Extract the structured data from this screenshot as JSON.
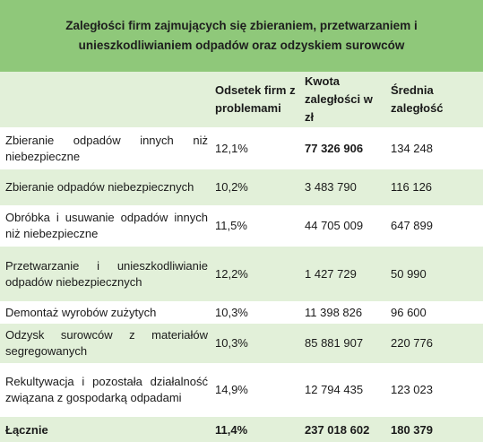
{
  "title": "Zaległości firm zajmujących się zbieraniem, przetwarzaniem i unieszkodliwianiem odpadów oraz odzyskiem surowców",
  "headers": {
    "category": "",
    "share": "Odsetek firm z problemami",
    "amount": "Kwota zaległości w zł",
    "average": "Średnia zaległość"
  },
  "rows": [
    {
      "label": "Zbieranie odpadów innych niż niebezpieczne",
      "share": "12,1%",
      "amount": "77 326 906",
      "average": "134 248"
    },
    {
      "label": "Zbieranie odpadów niebezpiecznych",
      "share": "10,2%",
      "amount": "3 483 790",
      "average": "116 126"
    },
    {
      "label": "Obróbka i usuwanie odpadów innych niż niebezpieczne",
      "share": "11,5%",
      "amount": "44 705 009",
      "average": "647 899"
    },
    {
      "label": "Przetwarzanie i unieszkodliwianie odpadów niebezpiecznych",
      "share": "12,2%",
      "amount": "1 427 729",
      "average": "50 990"
    },
    {
      "label": "Demontaż wyrobów zużytych",
      "share": "10,3%",
      "amount": "11 398 826",
      "average": "96 600"
    },
    {
      "label": "Odzysk surowców z materiałów segregowanych",
      "share": "10,3%",
      "amount": "85 881 907",
      "average": "220 776"
    },
    {
      "label": "Rekultywacja i pozostała działalność związana z gospodarką odpadami",
      "share": "14,9%",
      "amount": "12 794 435",
      "average": "123 023"
    }
  ],
  "total": {
    "label": "Łącznie",
    "share": "11,4%",
    "amount": "237 018 602",
    "average": "180 379"
  },
  "colors": {
    "title_bg": "#8fc87a",
    "band_bg": "#e2f0d9",
    "plain_bg": "#ffffff"
  }
}
